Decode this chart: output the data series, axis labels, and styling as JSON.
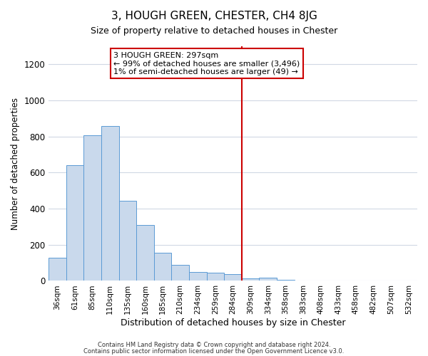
{
  "title": "3, HOUGH GREEN, CHESTER, CH4 8JG",
  "subtitle": "Size of property relative to detached houses in Chester",
  "xlabel": "Distribution of detached houses by size in Chester",
  "ylabel": "Number of detached properties",
  "bar_labels": [
    "36sqm",
    "61sqm",
    "85sqm",
    "110sqm",
    "135sqm",
    "160sqm",
    "185sqm",
    "210sqm",
    "234sqm",
    "259sqm",
    "284sqm",
    "309sqm",
    "334sqm",
    "358sqm",
    "383sqm",
    "408sqm",
    "433sqm",
    "458sqm",
    "482sqm",
    "507sqm",
    "532sqm"
  ],
  "bar_values": [
    130,
    640,
    805,
    860,
    445,
    310,
    155,
    90,
    50,
    45,
    38,
    15,
    17,
    7,
    3,
    2,
    1,
    2,
    1,
    0,
    1
  ],
  "bar_color": "#c9d9ec",
  "bar_edgecolor": "#5b9bd5",
  "ylim": [
    0,
    1300
  ],
  "yticks": [
    0,
    200,
    400,
    600,
    800,
    1000,
    1200
  ],
  "vline_color": "#cc0000",
  "annotation_line1": "3 HOUGH GREEN: 297sqm",
  "annotation_line2": "← 99% of detached houses are smaller (3,496)",
  "annotation_line3": "1% of semi-detached houses are larger (49) →",
  "footer_line1": "Contains HM Land Registry data © Crown copyright and database right 2024.",
  "footer_line2": "Contains public sector information licensed under the Open Government Licence v3.0.",
  "background_color": "#ffffff",
  "grid_color": "#d0d8e4",
  "title_fontsize": 11,
  "subtitle_fontsize": 9
}
